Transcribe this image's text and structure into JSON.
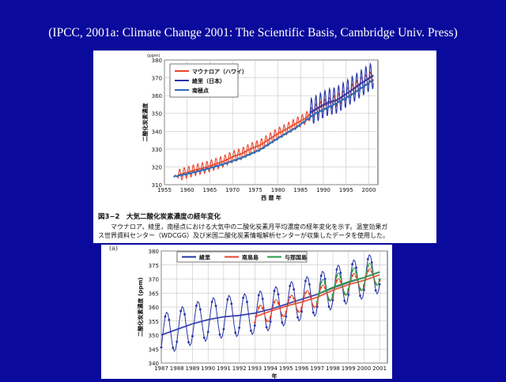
{
  "citation": "(IPCC, 2001a: Climate Change 2001: The Scientific Basis, Cambridge Univ. Press)",
  "colors": {
    "background": "#0a0a9c",
    "mauna_loa": "#e8452c",
    "ryori": "#2633a8",
    "south_pole": "#2a6bb5",
    "minamitorishima": "#e8452c",
    "yonagunijima": "#2a9a4a"
  },
  "top_caption": {
    "title": "図3−2　大気二酸化炭素濃度の経年変化",
    "line1": "マウナロア，綾里，南極点における大気中の二酸化炭素月平均濃度の経年変化を示す。温室効果ガ",
    "line2": "ス世界資料センター（WDCGG）及び米国二酸化炭素情報解析センターが収集したデータを使用した。"
  },
  "bottom_panel_label": "(a)",
  "chart_data": [
    {
      "type": "line",
      "title": "",
      "xlabel": "西 暦 年",
      "ylabel": "二酸化炭素濃度",
      "yunit": "(ppm)",
      "xlim": [
        1955,
        2002
      ],
      "ylim": [
        310,
        380
      ],
      "xticks": [
        1955,
        1960,
        1965,
        1970,
        1975,
        1980,
        1985,
        1990,
        1995,
        2000
      ],
      "yticks": [
        310,
        320,
        330,
        340,
        350,
        360,
        370,
        380
      ],
      "grid": true,
      "legend_position": "top-left",
      "series": [
        {
          "name": "マウナロア（ハワイ）",
          "color_key": "mauna_loa",
          "x": [
            1958,
            1960,
            1962,
            1964,
            1966,
            1968,
            1970,
            1972,
            1974,
            1976,
            1978,
            1980,
            1982,
            1984,
            1986,
            1988,
            1990,
            1992,
            1994,
            1996,
            1998,
            2000,
            2001
          ],
          "y": [
            315.3,
            316.9,
            318.4,
            319.6,
            321.4,
            323.1,
            325.7,
            327.4,
            330.2,
            332.1,
            335.4,
            338.7,
            341.4,
            344.4,
            347.2,
            351.6,
            354.4,
            356.4,
            358.9,
            362.6,
            366.7,
            369.5,
            371.1
          ]
        },
        {
          "name": "綾里（日本）",
          "color_key": "ryori",
          "x": [
            1987,
            1989,
            1991,
            1993,
            1995,
            1997,
            1999,
            2001
          ],
          "y": [
            350.5,
            353.5,
            356.3,
            357.5,
            361.0,
            364.4,
            368.1,
            371.5
          ]
        },
        {
          "name": "南極点",
          "color_key": "south_pole",
          "x": [
            1957,
            1960,
            1964,
            1968,
            1972,
            1976,
            1980,
            1984,
            1988,
            1992,
            1996,
            2000,
            2001
          ],
          "y": [
            314.5,
            316.0,
            318.5,
            321.5,
            325.0,
            329.5,
            336.0,
            342.0,
            349.5,
            354.5,
            360.0,
            367.0,
            369.0
          ]
        }
      ]
    },
    {
      "type": "line",
      "title": "",
      "xlabel": "年",
      "ylabel": "二酸化炭素濃度 (ppm)",
      "xlim": [
        1987,
        2001.5
      ],
      "ylim": [
        340,
        380
      ],
      "xticks": [
        1987,
        1988,
        1989,
        1990,
        1991,
        1992,
        1993,
        1994,
        1995,
        1996,
        1997,
        1998,
        1999,
        2000,
        2001
      ],
      "yticks": [
        340,
        345,
        350,
        355,
        360,
        365,
        370,
        375,
        380
      ],
      "grid": true,
      "legend_position": "top",
      "series": [
        {
          "name": "綾里",
          "color_key": "ryori",
          "x": [
            1987,
            1988,
            1989,
            1990,
            1991,
            1992,
            1993,
            1994,
            1995,
            1996,
            1997,
            1998,
            1999,
            2000,
            2001
          ],
          "y": [
            350.0,
            352.0,
            354.0,
            355.5,
            356.5,
            357.0,
            357.8,
            359.2,
            361.0,
            362.8,
            364.5,
            366.8,
            368.8,
            370.5,
            372.5
          ]
        },
        {
          "name": "南鳥島",
          "color_key": "minamitorishima",
          "x": [
            1993,
            1994,
            1995,
            1996,
            1997,
            1998,
            1999,
            2000,
            2001
          ],
          "y": [
            356.5,
            358.5,
            360.3,
            361.8,
            363.5,
            366.0,
            368.0,
            369.5,
            371.5
          ]
        },
        {
          "name": "与那国島",
          "color_key": "yonagunijima",
          "x": [
            1997,
            1998,
            1999,
            2000,
            2001
          ],
          "y": [
            364.5,
            367.0,
            369.0,
            370.5,
            372.5
          ]
        }
      ]
    }
  ]
}
